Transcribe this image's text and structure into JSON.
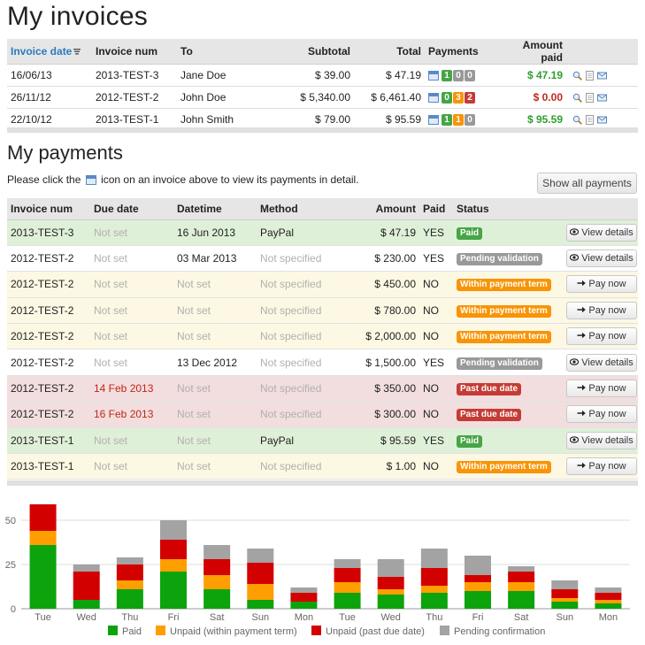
{
  "invoices": {
    "title": "My invoices",
    "columns": {
      "date": "Invoice date",
      "num": "Invoice num",
      "to": "To",
      "subtotal": "Subtotal",
      "total": "Total",
      "payments": "Payments",
      "amount_paid": "Amount paid"
    },
    "rows": [
      {
        "date": "16/06/13",
        "num": "2013-TEST-3",
        "to": "Jane Doe",
        "subtotal": "$ 39.00",
        "total": "$ 47.19",
        "paid_count": "1",
        "within_count": "0",
        "past_count": "0",
        "amount_paid": "$ 47.19"
      },
      {
        "date": "26/11/12",
        "num": "2012-TEST-2",
        "to": "John Doe",
        "subtotal": "$ 5,340.00",
        "total": "$ 6,461.40",
        "paid_count": "0",
        "within_count": "3",
        "past_count": "2",
        "amount_paid": "$ 0.00"
      },
      {
        "date": "22/10/12",
        "num": "2013-TEST-1",
        "to": "John Smith",
        "subtotal": "$ 79.00",
        "total": "$ 95.59",
        "paid_count": "1",
        "within_count": "1",
        "past_count": "0",
        "amount_paid": "$ 95.59"
      }
    ]
  },
  "payments": {
    "title": "My payments",
    "hint_before": "Please click the",
    "hint_after": "icon on an invoice above to view its payments in detail.",
    "show_all_label": "Show all payments",
    "columns": {
      "num": "Invoice num",
      "due": "Due date",
      "datetime": "Datetime",
      "method": "Method",
      "amount": "Amount",
      "paid": "Paid",
      "status": "Status"
    },
    "rows": [
      {
        "num": "2013-TEST-3",
        "due": "Not set",
        "datetime": "16 Jun 2013",
        "method": "PayPal",
        "amount": "$ 47.19",
        "paid": "YES",
        "status": "Paid",
        "action": "View details",
        "kind": "paid"
      },
      {
        "num": "2012-TEST-2",
        "due": "Not set",
        "datetime": "03 Mar 2013",
        "method": "Not specified",
        "amount": "$ 230.00",
        "paid": "YES",
        "status": "Pending validation",
        "action": "View details",
        "kind": "pending"
      },
      {
        "num": "2012-TEST-2",
        "due": "Not set",
        "datetime": "Not set",
        "method": "Not specified",
        "amount": "$ 450.00",
        "paid": "NO",
        "status": "Within payment term",
        "action": "Pay now",
        "kind": "within"
      },
      {
        "num": "2012-TEST-2",
        "due": "Not set",
        "datetime": "Not set",
        "method": "Not specified",
        "amount": "$ 780.00",
        "paid": "NO",
        "status": "Within payment term",
        "action": "Pay now",
        "kind": "within"
      },
      {
        "num": "2012-TEST-2",
        "due": "Not set",
        "datetime": "Not set",
        "method": "Not specified",
        "amount": "$ 2,000.00",
        "paid": "NO",
        "status": "Within payment term",
        "action": "Pay now",
        "kind": "within"
      },
      {
        "num": "2012-TEST-2",
        "due": "Not set",
        "datetime": "13 Dec 2012",
        "method": "Not specified",
        "amount": "$ 1,500.00",
        "paid": "YES",
        "status": "Pending validation",
        "action": "View details",
        "kind": "pending"
      },
      {
        "num": "2012-TEST-2",
        "due": "14 Feb 2013",
        "datetime": "Not set",
        "method": "Not specified",
        "amount": "$ 350.00",
        "paid": "NO",
        "status": "Past due date",
        "action": "Pay now",
        "kind": "past"
      },
      {
        "num": "2012-TEST-2",
        "due": "16 Feb 2013",
        "datetime": "Not set",
        "method": "Not specified",
        "amount": "$ 300.00",
        "paid": "NO",
        "status": "Past due date",
        "action": "Pay now",
        "kind": "past"
      },
      {
        "num": "2013-TEST-1",
        "due": "Not set",
        "datetime": "Not set",
        "method": "PayPal",
        "amount": "$ 95.59",
        "paid": "YES",
        "status": "Paid",
        "action": "View details",
        "kind": "paid"
      },
      {
        "num": "2013-TEST-1",
        "due": "Not set",
        "datetime": "Not set",
        "method": "Not specified",
        "amount": "$ 1.00",
        "paid": "NO",
        "status": "Within payment term",
        "action": "Pay now",
        "kind": "within"
      }
    ]
  },
  "colors": {
    "paid": "#0ca30c",
    "within": "#ff9e00",
    "past": "#d30000",
    "pending": "#a3a3a3"
  },
  "chart_data": {
    "type": "bar",
    "stacked": true,
    "categories": [
      "Tue",
      "Wed",
      "Thu",
      "Fri",
      "Sat",
      "Sun",
      "Mon",
      "Tue",
      "Wed",
      "Thu",
      "Fri",
      "Sat",
      "Sun",
      "Mon"
    ],
    "series": [
      {
        "name": "Paid",
        "values": [
          36,
          5,
          11,
          21,
          11,
          5,
          4,
          9,
          8,
          9,
          10,
          10,
          4,
          3
        ]
      },
      {
        "name": "Unpaid (within payment term)",
        "values": [
          8,
          0,
          5,
          7,
          8,
          9,
          0,
          6,
          3,
          4,
          5,
          5,
          2,
          2
        ]
      },
      {
        "name": "Unpaid (past due date)",
        "values": [
          15,
          16,
          9,
          11,
          9,
          12,
          5,
          8,
          7,
          10,
          4,
          6,
          5,
          4
        ]
      },
      {
        "name": "Pending confirmation",
        "values": [
          0,
          4,
          4,
          11,
          8,
          8,
          3,
          5,
          10,
          11,
          11,
          3,
          5,
          3
        ]
      }
    ],
    "yticks": [
      0,
      25,
      50
    ],
    "ylim": [
      0,
      62
    ],
    "legend_position": "bottom",
    "grid": true
  }
}
